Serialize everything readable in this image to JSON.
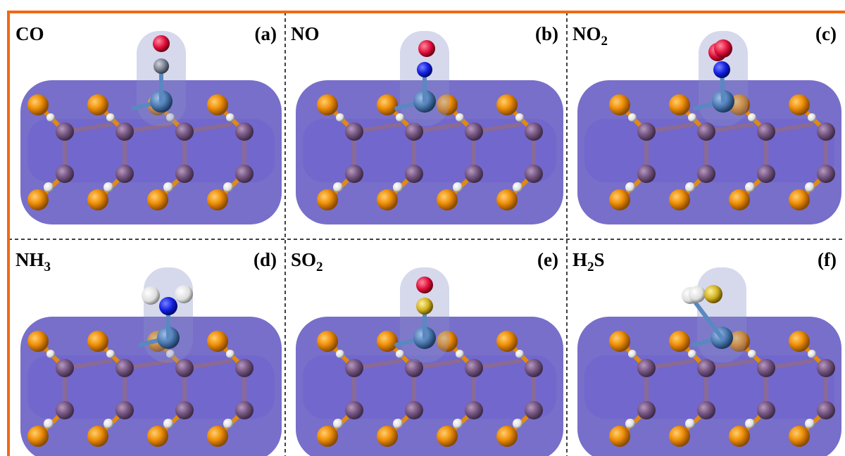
{
  "panels": [
    {
      "formula": [
        "CO"
      ],
      "tag": "(a)"
    },
    {
      "formula": [
        "NO"
      ],
      "tag": "(b)"
    },
    {
      "formula": [
        "NO",
        {
          "sub": "2"
        }
      ],
      "tag": "(c)"
    },
    {
      "formula": [
        "NH",
        {
          "sub": "3"
        }
      ],
      "tag": "(d)"
    },
    {
      "formula": [
        "SO",
        {
          "sub": "2"
        }
      ],
      "tag": "(e)"
    },
    {
      "formula": [
        "H",
        {
          "sub": "2"
        },
        "S"
      ],
      "tag": "(f)"
    }
  ]
}
